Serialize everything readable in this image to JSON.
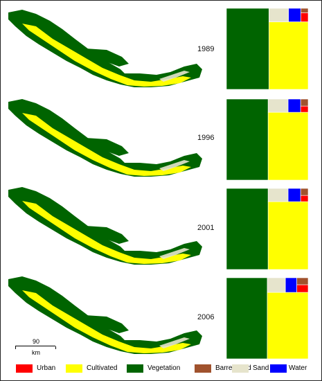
{
  "colors": {
    "urban": "#ff0000",
    "cultivated": "#ffff00",
    "vegetation": "#006400",
    "barren": "#a0522d",
    "sand": "#e6e4cc",
    "water": "#0000ff"
  },
  "panels": [
    {
      "year": "1989",
      "shares": {
        "vegetation": 0.52,
        "cultivated": 0.4,
        "sand": 0.04,
        "water": 0.025,
        "barren": 0.005,
        "urban": 0.01
      }
    },
    {
      "year": "1996",
      "shares": {
        "vegetation": 0.51,
        "cultivated": 0.41,
        "sand": 0.04,
        "water": 0.025,
        "barren": 0.008,
        "urban": 0.007
      }
    },
    {
      "year": "2001",
      "shares": {
        "vegetation": 0.51,
        "cultivated": 0.41,
        "sand": 0.04,
        "water": 0.025,
        "barren": 0.008,
        "urban": 0.007
      }
    },
    {
      "year": "2006",
      "shares": {
        "vegetation": 0.5,
        "cultivated": 0.41,
        "sand": 0.04,
        "water": 0.025,
        "barren": 0.012,
        "urban": 0.013
      }
    }
  ],
  "scale_bar": {
    "value": "90",
    "unit": "km"
  },
  "legend": [
    {
      "key": "urban",
      "label": "Urban"
    },
    {
      "key": "cultivated",
      "label": "Cultivated"
    },
    {
      "key": "vegetation",
      "label": "Vegetation"
    },
    {
      "key": "barren",
      "label": "Barren land"
    },
    {
      "key": "sand",
      "label": "Sand"
    },
    {
      "key": "water",
      "label": "Water"
    }
  ]
}
